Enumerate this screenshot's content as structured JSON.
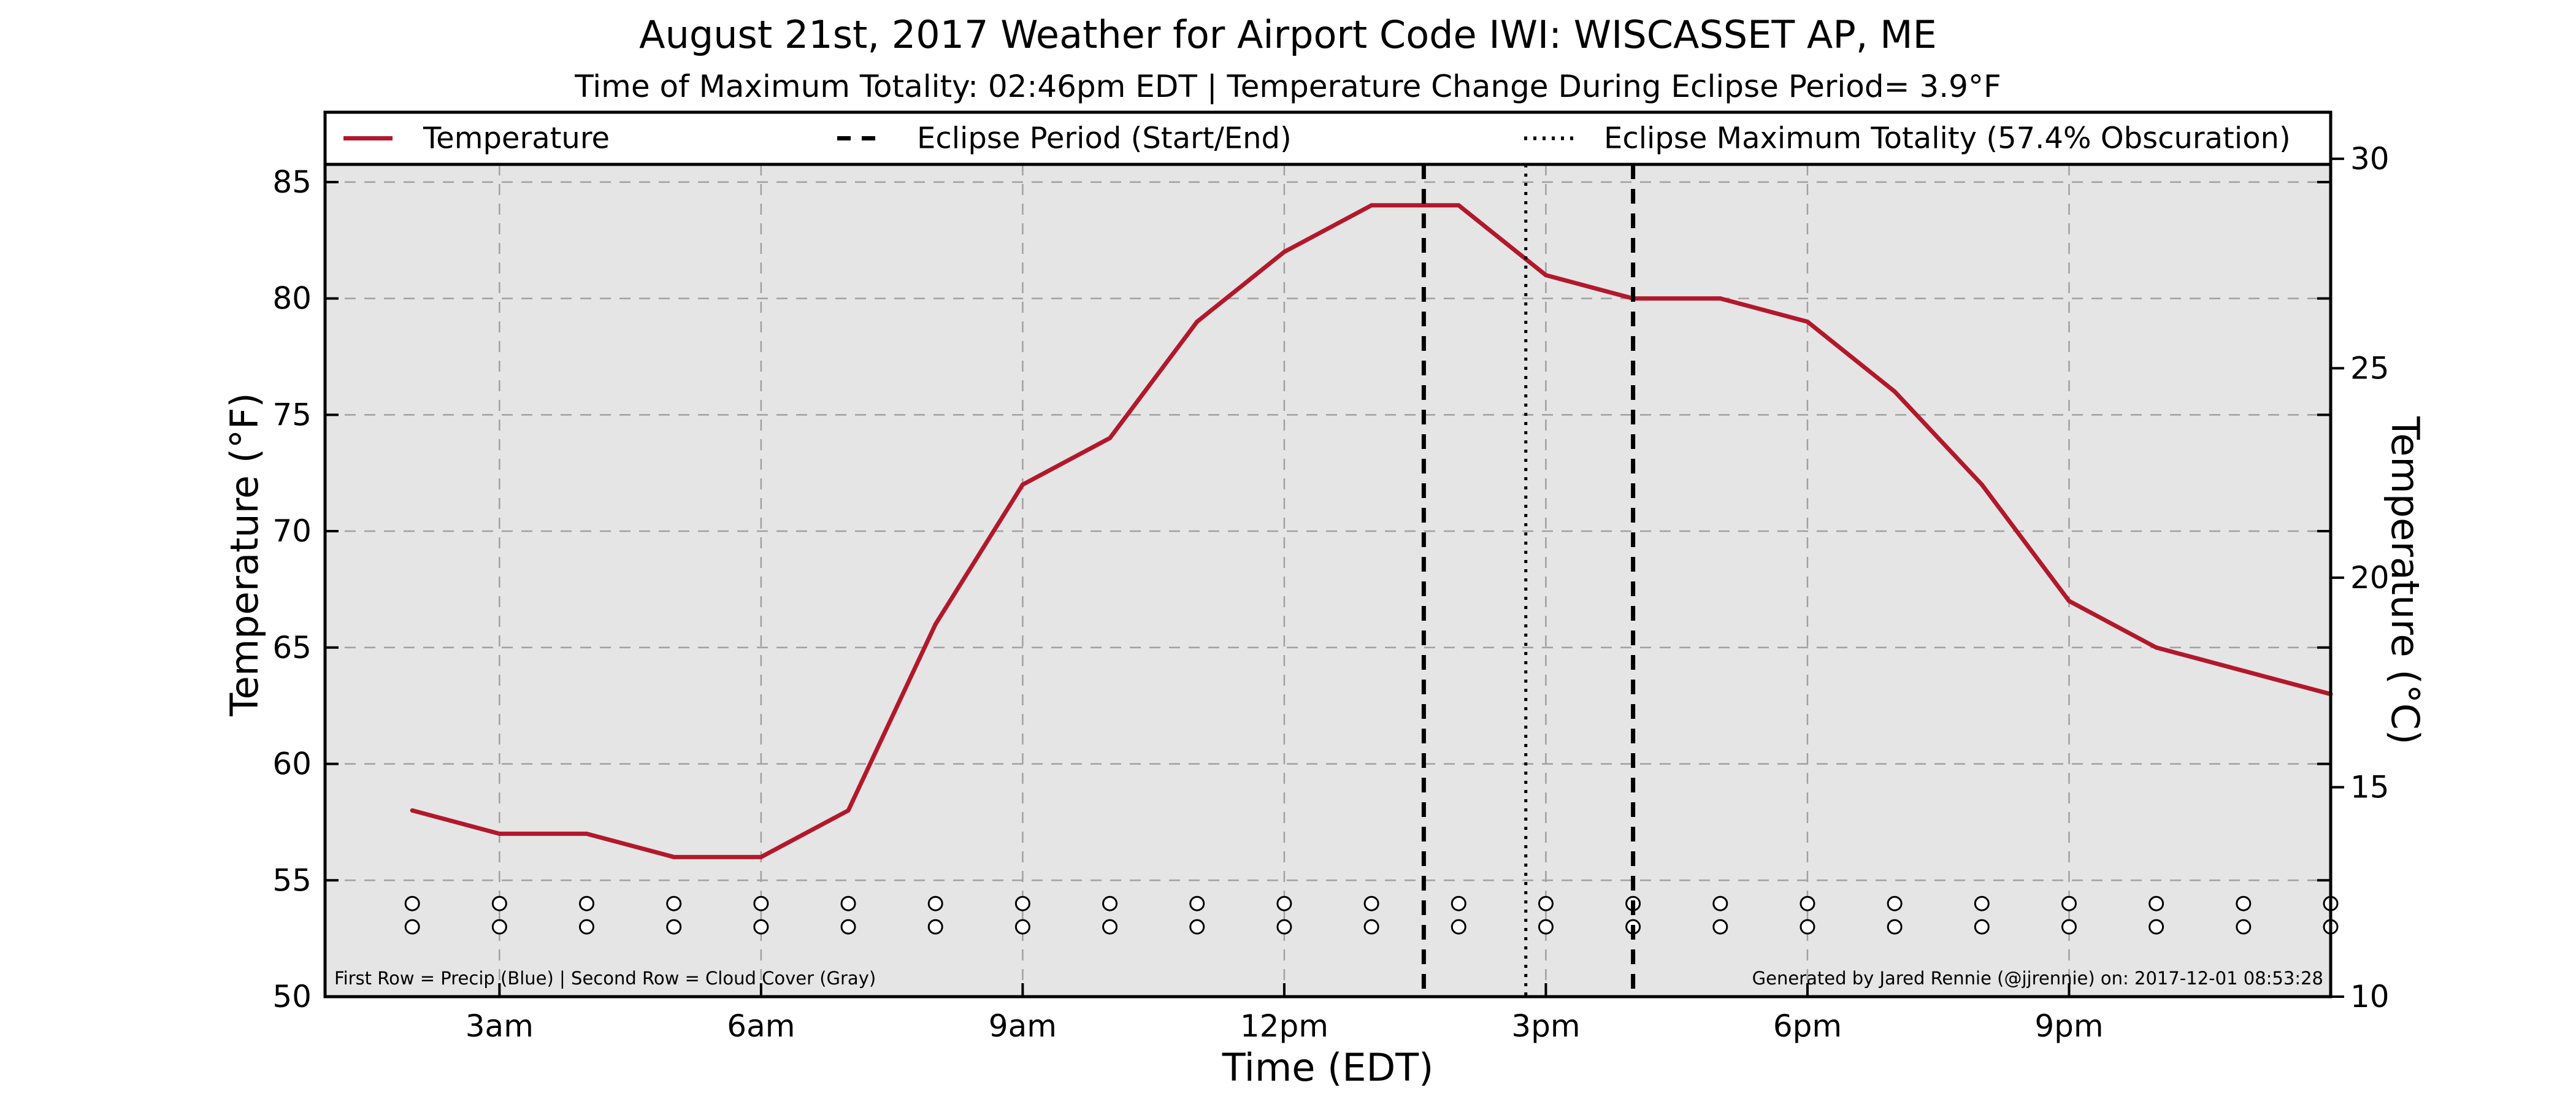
{
  "chart_data": {
    "type": "line",
    "title": "August 21st, 2017 Weather for Airport Code IWI: WISCASSET AP, ME",
    "subtitle": "Time of Maximum Totality: 02:46pm EDT | Temperature Change During Eclipse Period= 3.9°F",
    "xlabel": "Time (EDT)",
    "ylabel": "Temperature (°F)",
    "ylabel_right": "Temperature (°C)",
    "x_range_hours": [
      1,
      24
    ],
    "ylim": [
      50,
      88
    ],
    "ylim_right_c": [
      10,
      31.11
    ],
    "x_ticks": [
      {
        "hour": 3,
        "label": "3am"
      },
      {
        "hour": 6,
        "label": "6am"
      },
      {
        "hour": 9,
        "label": "9am"
      },
      {
        "hour": 12,
        "label": "12pm"
      },
      {
        "hour": 15,
        "label": "3pm"
      },
      {
        "hour": 18,
        "label": "6pm"
      },
      {
        "hour": 21,
        "label": "9pm"
      }
    ],
    "y_ticks": [
      50,
      55,
      60,
      65,
      70,
      75,
      80,
      85
    ],
    "y_ticks_right": [
      10,
      15,
      20,
      25,
      30
    ],
    "grid": true,
    "legend_placement": "top",
    "legend": [
      {
        "label": "Temperature",
        "style": "solid"
      },
      {
        "label": "Eclipse Period (Start/End)",
        "style": "dashed"
      },
      {
        "label": "Eclipse Maximum Totality (57.4% Obscuration)",
        "style": "dotted"
      }
    ],
    "series": [
      {
        "name": "Temperature",
        "color": "#b2182b",
        "x": [
          2,
          3,
          4,
          5,
          6,
          7,
          8,
          9,
          10,
          11,
          12,
          13,
          14,
          15,
          16,
          17,
          18,
          19,
          20,
          21,
          22,
          23,
          24
        ],
        "values": [
          58,
          57,
          57,
          56,
          56,
          58,
          66,
          72,
          74,
          79,
          82,
          84,
          84,
          81,
          80,
          80,
          79,
          76,
          72,
          67,
          65,
          64,
          63
        ]
      }
    ],
    "eclipse_start_hour": 13.6,
    "eclipse_end_hour": 16.0,
    "eclipse_max_hour": 14.77,
    "indicator_rows": {
      "x": [
        2,
        3,
        4,
        5,
        6,
        7,
        8,
        9,
        10,
        11,
        12,
        13,
        14,
        15,
        16,
        17,
        18,
        19,
        20,
        21,
        22,
        23,
        24
      ],
      "precip_y": 54,
      "cloud_y": 53
    },
    "footnote_left": "First Row = Precip (Blue) | Second Row = Cloud Cover (Gray)",
    "footnote_right": "Generated by Jared Rennie (@jjrennie) on: 2017-12-01 08:53:28",
    "colors": {
      "plot_background": "#e5e5e5",
      "temperature": "#b2182b",
      "grid": "#a0a0a0"
    }
  }
}
